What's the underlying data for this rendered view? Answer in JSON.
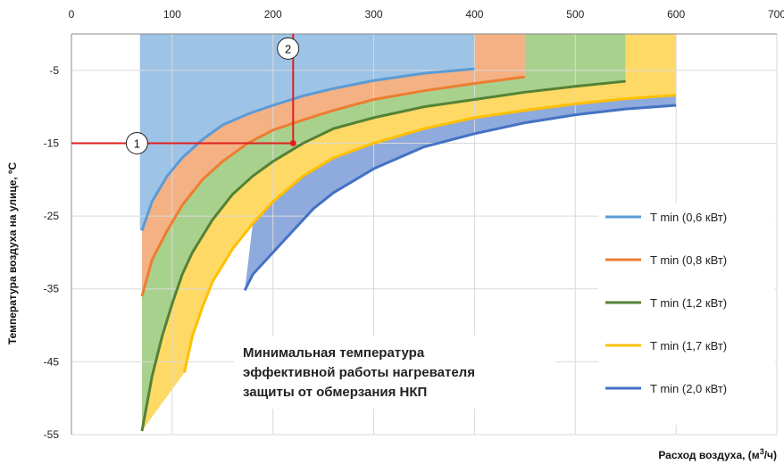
{
  "chart_data": {
    "type": "area",
    "title": "",
    "xlabel": "Расход воздуха, (м",
    "xlabel_sup": "3",
    "xlabel_suffix": "/ч)",
    "ylabel": "Температура воздуха на улице, ºС",
    "xlim": [
      0,
      700
    ],
    "ylim": [
      -55,
      0
    ],
    "x_ticks": [
      0,
      100,
      200,
      300,
      400,
      500,
      600,
      700
    ],
    "y_ticks": [
      -5,
      -15,
      -25,
      -35,
      -45,
      -55
    ],
    "grid": true,
    "legend_position": "right",
    "series": [
      {
        "name": "T min (0,6 кВт)",
        "color": "#5b9bd5",
        "fill": "#9dc3e6",
        "x": [
          70,
          80,
          95,
          110,
          130,
          150,
          175,
          200,
          230,
          260,
          300,
          350,
          400
        ],
        "y": [
          -27,
          -23,
          -19.5,
          -17,
          -14.5,
          -12.5,
          -11,
          -9.8,
          -8.5,
          -7.5,
          -6.4,
          -5.4,
          -4.8
        ],
        "fill_right": 400
      },
      {
        "name": "T min (0,8 кВт)",
        "color": "#ed7d31",
        "fill": "#f4b183",
        "x": [
          70,
          80,
          95,
          110,
          130,
          150,
          175,
          200,
          230,
          260,
          300,
          350,
          400,
          450
        ],
        "y": [
          -36,
          -31,
          -27,
          -23.5,
          -20,
          -17.5,
          -15,
          -13.2,
          -11.8,
          -10.5,
          -9,
          -7.8,
          -6.8,
          -5.9
        ],
        "fill_right": 450
      },
      {
        "name": "T min (1,2 кВт)",
        "color": "#548235",
        "fill": "#a9d18e",
        "x": [
          70,
          80,
          90,
          100,
          110,
          120,
          140,
          160,
          180,
          200,
          230,
          260,
          300,
          350,
          400,
          450,
          500,
          550
        ],
        "y": [
          -54.5,
          -47,
          -41.5,
          -37,
          -33,
          -30,
          -25.5,
          -22,
          -19.5,
          -17.5,
          -15,
          -13,
          -11.5,
          -10,
          -9,
          -8,
          -7.2,
          -6.5
        ],
        "fill_right": 550
      },
      {
        "name": "T min (1,7 кВт)",
        "color": "#ffc000",
        "fill": "#ffd966",
        "x": [
          112,
          120,
          130,
          140,
          160,
          180,
          200,
          230,
          260,
          300,
          350,
          400,
          450,
          500,
          550,
          600
        ],
        "y": [
          -46.5,
          -41.5,
          -37.5,
          -34,
          -29.5,
          -26,
          -23,
          -19.5,
          -17,
          -15,
          -13,
          -11.5,
          -10.5,
          -9.6,
          -8.9,
          -8.4
        ],
        "fill_right": 600
      },
      {
        "name": "T min (2,0 кВт)",
        "color": "#4472c4",
        "fill": "#8faadc",
        "x": [
          172,
          180,
          200,
          220,
          240,
          260,
          300,
          350,
          400,
          450,
          500,
          550,
          600
        ],
        "y": [
          -35.2,
          -33,
          -30,
          -27,
          -24,
          -21.8,
          -18.5,
          -15.5,
          -13.7,
          -12.2,
          -11.1,
          -10.3,
          -9.8
        ]
      }
    ],
    "fill_left_edge": 68,
    "annotation_lines": [
      "Минимальная температура",
      "эффективной работы нагревателя",
      "защиты от обмерзания НКП"
    ],
    "example_lines": {
      "color": "#e02020",
      "x": 220,
      "y": -15
    },
    "markers": [
      {
        "label": "1",
        "x": 65,
        "y": -15
      },
      {
        "label": "2",
        "x": 215,
        "y": -2
      }
    ]
  }
}
